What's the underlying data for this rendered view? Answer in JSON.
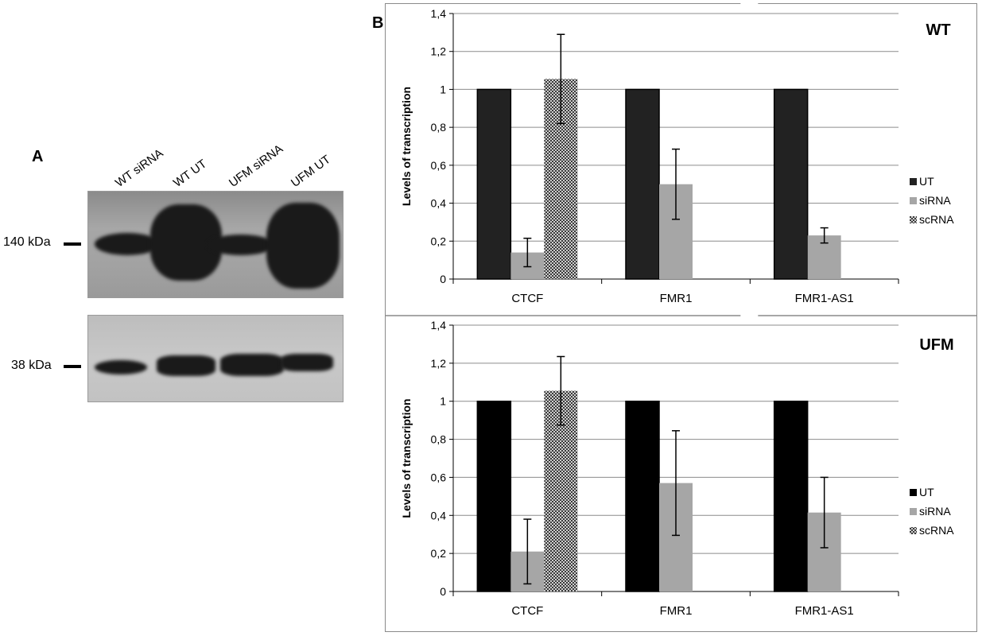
{
  "panel_a": {
    "letter": "A",
    "lanes": [
      "WT siRNA",
      "WT UT",
      "UFM siRNA",
      "UFM UT"
    ],
    "markers": [
      "140 kDa",
      "38 kDa"
    ]
  },
  "panel_b": {
    "letter": "B"
  },
  "chart_data": [
    {
      "type": "bar",
      "title": "WT",
      "ylabel": "Levels of transcription",
      "xlabel": "",
      "ylim": [
        0,
        1.4
      ],
      "yticks": [
        "0",
        "0,2",
        "0,4",
        "0,6",
        "0,8",
        "1",
        "1,2",
        "1,4"
      ],
      "categories": [
        "CTCF",
        "FMR1",
        "FMR1-AS1"
      ],
      "grid": true,
      "legend_position": "right",
      "series": [
        {
          "name": "UT",
          "values": [
            1.0,
            1.0,
            1.0
          ],
          "errors": [
            null,
            null,
            null
          ],
          "color": "#222222"
        },
        {
          "name": "siRNA",
          "values": [
            0.14,
            0.5,
            0.23
          ],
          "errors": [
            0.075,
            0.185,
            0.04
          ],
          "color": "#a6a6a6"
        },
        {
          "name": "scRNA",
          "values": [
            1.055,
            null,
            null
          ],
          "errors": [
            0.235,
            null,
            null
          ],
          "color": "#7a7a7a"
        }
      ]
    },
    {
      "type": "bar",
      "title": "UFM",
      "ylabel": "Levels of transcription",
      "xlabel": "",
      "ylim": [
        0,
        1.4
      ],
      "yticks": [
        "0",
        "0,2",
        "0,4",
        "0,6",
        "0,8",
        "1",
        "1,2",
        "1,4"
      ],
      "categories": [
        "CTCF",
        "FMR1",
        "FMR1-AS1"
      ],
      "grid": true,
      "legend_position": "right",
      "series": [
        {
          "name": "UT",
          "values": [
            1.0,
            1.0,
            1.0
          ],
          "errors": [
            null,
            null,
            null
          ],
          "color": "#000000"
        },
        {
          "name": "siRNA",
          "values": [
            0.21,
            0.57,
            0.415
          ],
          "errors": [
            0.17,
            0.275,
            0.185
          ],
          "color": "#a6a6a6"
        },
        {
          "name": "scRNA",
          "values": [
            1.055,
            null,
            null
          ],
          "errors": [
            0.18,
            null,
            null
          ],
          "color": "#7a7a7a"
        }
      ]
    }
  ]
}
